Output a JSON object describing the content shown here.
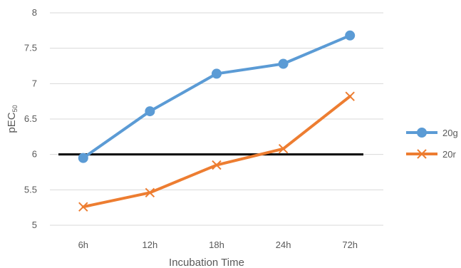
{
  "chart_data": {
    "type": "line",
    "categories": [
      "6h",
      "12h",
      "18h",
      "24h",
      "72h"
    ],
    "series": [
      {
        "name": "20g",
        "values": [
          5.95,
          6.61,
          7.14,
          7.28,
          7.68
        ],
        "color": "#5B9BD5",
        "marker": "circle"
      },
      {
        "name": "20r",
        "values": [
          5.26,
          5.46,
          5.85,
          6.08,
          6.82
        ],
        "color": "#ED7D31",
        "marker": "x"
      }
    ],
    "reference_line": {
      "value": 6,
      "color": "#000000"
    },
    "xlabel": "Incubation Time",
    "ylabel": {
      "main": "pEC",
      "subscript": "50"
    },
    "ylim": [
      5,
      8
    ],
    "yticks": [
      "5",
      "5.5",
      "6",
      "6.5",
      "7",
      "7.5",
      "8"
    ],
    "grid": true,
    "legend": "right"
  }
}
